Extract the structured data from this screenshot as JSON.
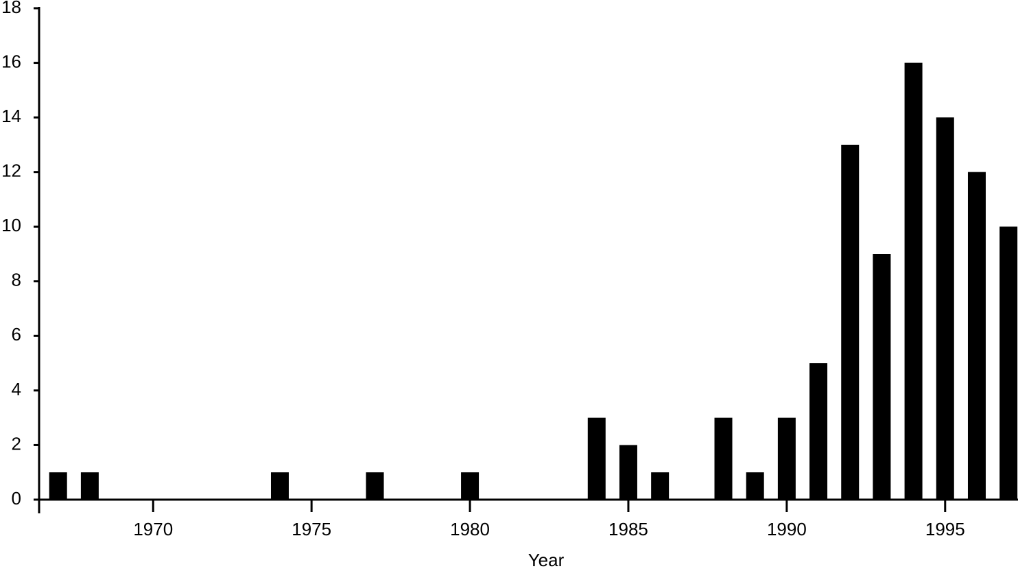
{
  "chart_data": {
    "type": "bar",
    "x_label": "Year",
    "x": [
      1967,
      1968,
      1974,
      1977,
      1980,
      1984,
      1985,
      1986,
      1988,
      1989,
      1990,
      1991,
      1992,
      1993,
      1994,
      1995,
      1996,
      1997
    ],
    "values": [
      1,
      1,
      1,
      1,
      1,
      3,
      2,
      1,
      3,
      1,
      3,
      5,
      13,
      9,
      16,
      14,
      12,
      10
    ],
    "color": "#000000",
    "xlim": [
      1966.4,
      1997.3
    ],
    "xticks": [
      1970,
      1975,
      1980,
      1985,
      1990,
      1995
    ],
    "ylim": [
      0,
      18
    ],
    "yticks": [
      0,
      2,
      4,
      6,
      8,
      10,
      12,
      14,
      16,
      18
    ]
  }
}
